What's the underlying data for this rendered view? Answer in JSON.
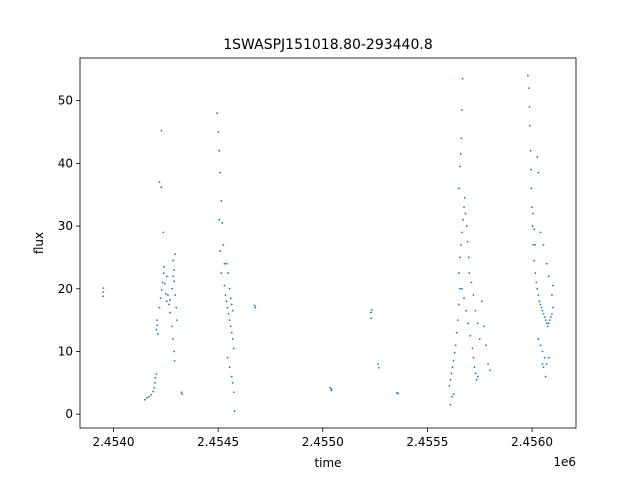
{
  "chart_data": {
    "type": "scatter",
    "title": "1SWASPJ151018.80-293440.8",
    "xlabel": "time",
    "ylabel": "flux",
    "x_offset_label": "1e6",
    "xlim": [
      2453840,
      2456210
    ],
    "ylim": [
      -2.2,
      56.8
    ],
    "x_ticks": [
      2454000,
      2454500,
      2455000,
      2455500,
      2456000
    ],
    "x_tick_labels": [
      "2.4540",
      "2.4545",
      "2.4550",
      "2.4555",
      "2.4560"
    ],
    "y_ticks": [
      0,
      10,
      20,
      30,
      40,
      50
    ],
    "y_tick_labels": [
      "0",
      "10",
      "20",
      "30",
      "40",
      "50"
    ],
    "grid": false,
    "legend": "none",
    "point_color": "#1f77b4",
    "series": [
      {
        "points": [
          [
            2453950,
            19.5
          ],
          [
            2453950,
            18.8
          ],
          [
            2453952,
            20.1
          ],
          [
            2454150,
            2.3
          ],
          [
            2454160,
            2.6
          ],
          [
            2454170,
            2.8
          ],
          [
            2454180,
            3.1
          ],
          [
            2454190,
            3.6
          ],
          [
            2454195,
            4.2
          ],
          [
            2454198,
            5.0
          ],
          [
            2454200,
            5.8
          ],
          [
            2454205,
            6.4
          ],
          [
            2454205,
            13.5
          ],
          [
            2454208,
            15.0
          ],
          [
            2454210,
            14.2
          ],
          [
            2454212,
            12.8
          ],
          [
            2454220,
            17.0
          ],
          [
            2454225,
            18.5
          ],
          [
            2454230,
            19.8
          ],
          [
            2454235,
            21.0
          ],
          [
            2454240,
            22.5
          ],
          [
            2454242,
            23.5
          ],
          [
            2454245,
            20.8
          ],
          [
            2454250,
            19.2
          ],
          [
            2454255,
            18.0
          ],
          [
            2454220,
            37.0
          ],
          [
            2454228,
            36.2
          ],
          [
            2454230,
            45.2
          ],
          [
            2454238,
            29.0
          ],
          [
            2454255,
            22.0
          ],
          [
            2454260,
            19.0
          ],
          [
            2454270,
            16.2
          ],
          [
            2454280,
            14.0
          ],
          [
            2454285,
            12.0
          ],
          [
            2454290,
            10.0
          ],
          [
            2454292,
            8.5
          ],
          [
            2454265,
            17.5
          ],
          [
            2454270,
            18.2
          ],
          [
            2454280,
            20.0
          ],
          [
            2454285,
            22.0
          ],
          [
            2454290,
            21.2
          ],
          [
            2454295,
            19.0
          ],
          [
            2454300,
            17.0
          ],
          [
            2454302,
            15.0
          ],
          [
            2454285,
            24.5
          ],
          [
            2454290,
            23.0
          ],
          [
            2454295,
            25.5
          ],
          [
            2454325,
            3.5
          ],
          [
            2454328,
            3.2
          ],
          [
            2454495,
            48.0
          ],
          [
            2454500,
            45.0
          ],
          [
            2454505,
            42.0
          ],
          [
            2454510,
            38.5
          ],
          [
            2454515,
            34.0
          ],
          [
            2454520,
            30.5
          ],
          [
            2454525,
            27.0
          ],
          [
            2454530,
            24.0
          ],
          [
            2454505,
            31.0
          ],
          [
            2454510,
            26.0
          ],
          [
            2454515,
            22.5
          ],
          [
            2454530,
            20.5
          ],
          [
            2454535,
            19.0
          ],
          [
            2454540,
            18.0
          ],
          [
            2454545,
            17.0
          ],
          [
            2454550,
            16.0
          ],
          [
            2454555,
            15.0
          ],
          [
            2454560,
            14.0
          ],
          [
            2454565,
            13.0
          ],
          [
            2454570,
            12.0
          ],
          [
            2454575,
            10.5
          ],
          [
            2454540,
            24.0
          ],
          [
            2454548,
            22.5
          ],
          [
            2454555,
            20.0
          ],
          [
            2454560,
            18.5
          ],
          [
            2454565,
            17.5
          ],
          [
            2454570,
            16.5
          ],
          [
            2454545,
            9.0
          ],
          [
            2454555,
            7.5
          ],
          [
            2454565,
            6.0
          ],
          [
            2454570,
            5.0
          ],
          [
            2454575,
            3.5
          ],
          [
            2454578,
            0.5
          ],
          [
            2454675,
            17.3
          ],
          [
            2454678,
            17.0
          ],
          [
            2455035,
            4.2
          ],
          [
            2455040,
            3.8
          ],
          [
            2455042,
            4.0
          ],
          [
            2455230,
            16.2
          ],
          [
            2455232,
            15.3
          ],
          [
            2455234,
            16.6
          ],
          [
            2455265,
            8.0
          ],
          [
            2455268,
            7.4
          ],
          [
            2455355,
            3.4
          ],
          [
            2455360,
            3.3
          ],
          [
            2455605,
            4.5
          ],
          [
            2455610,
            5.5
          ],
          [
            2455615,
            6.5
          ],
          [
            2455620,
            7.5
          ],
          [
            2455625,
            8.5
          ],
          [
            2455630,
            9.8
          ],
          [
            2455635,
            11.0
          ],
          [
            2455640,
            13.0
          ],
          [
            2455645,
            15.0
          ],
          [
            2455650,
            17.5
          ],
          [
            2455655,
            20.0
          ],
          [
            2455610,
            1.5
          ],
          [
            2455618,
            2.8
          ],
          [
            2455625,
            3.2
          ],
          [
            2455650,
            22.5
          ],
          [
            2455655,
            25.0
          ],
          [
            2455660,
            27.0
          ],
          [
            2455665,
            29.0
          ],
          [
            2455670,
            31.0
          ],
          [
            2455675,
            33.0
          ],
          [
            2455678,
            34.5
          ],
          [
            2455682,
            32.0
          ],
          [
            2455688,
            30.0
          ],
          [
            2455692,
            27.5
          ],
          [
            2455698,
            25.0
          ],
          [
            2455650,
            36.0
          ],
          [
            2455655,
            39.5
          ],
          [
            2455658,
            41.5
          ],
          [
            2455662,
            44.0
          ],
          [
            2455665,
            48.5
          ],
          [
            2455668,
            53.5
          ],
          [
            2455665,
            20.0
          ],
          [
            2455675,
            18.5
          ],
          [
            2455685,
            16.5
          ],
          [
            2455695,
            14.5
          ],
          [
            2455705,
            12.5
          ],
          [
            2455715,
            10.5
          ],
          [
            2455720,
            9.0
          ],
          [
            2455725,
            7.5
          ],
          [
            2455730,
            6.5
          ],
          [
            2455735,
            5.5
          ],
          [
            2455740,
            6.0
          ],
          [
            2455700,
            22.5
          ],
          [
            2455710,
            21.0
          ],
          [
            2455720,
            19.0
          ],
          [
            2455730,
            16.5
          ],
          [
            2455740,
            14.5
          ],
          [
            2455750,
            12.0
          ],
          [
            2455760,
            18.0
          ],
          [
            2455770,
            14.0
          ],
          [
            2455780,
            11.0
          ],
          [
            2455790,
            8.0
          ],
          [
            2455800,
            7.0
          ],
          [
            2455980,
            54.0
          ],
          [
            2455985,
            52.0
          ],
          [
            2455988,
            49.0
          ],
          [
            2455990,
            46.0
          ],
          [
            2455993,
            42.0
          ],
          [
            2455995,
            39.0
          ],
          [
            2455997,
            36.0
          ],
          [
            2455999,
            33.0
          ],
          [
            2456002,
            30.0
          ],
          [
            2456005,
            27.0
          ],
          [
            2456010,
            24.5
          ],
          [
            2456015,
            22.5
          ],
          [
            2456005,
            32.0
          ],
          [
            2456010,
            29.5
          ],
          [
            2456015,
            27.0
          ],
          [
            2456020,
            21.0
          ],
          [
            2456025,
            20.0
          ],
          [
            2456030,
            19.0
          ],
          [
            2456035,
            18.0
          ],
          [
            2456040,
            17.5
          ],
          [
            2456045,
            17.0
          ],
          [
            2456050,
            16.5
          ],
          [
            2456055,
            16.0
          ],
          [
            2456060,
            15.5
          ],
          [
            2456065,
            15.0
          ],
          [
            2456070,
            14.5
          ],
          [
            2456075,
            14.0
          ],
          [
            2456080,
            14.5
          ],
          [
            2456085,
            15.0
          ],
          [
            2456090,
            15.5
          ],
          [
            2456095,
            16.0
          ],
          [
            2456100,
            17.0
          ],
          [
            2456030,
            12.0
          ],
          [
            2456040,
            11.0
          ],
          [
            2456050,
            10.0
          ],
          [
            2456060,
            9.0
          ],
          [
            2456070,
            8.0
          ],
          [
            2456080,
            9.0
          ],
          [
            2456050,
            8.0
          ],
          [
            2456055,
            7.5
          ],
          [
            2456065,
            6.0
          ],
          [
            2456025,
            41.0
          ],
          [
            2456030,
            38.5
          ],
          [
            2456040,
            29.0
          ],
          [
            2456055,
            27.0
          ],
          [
            2456070,
            24.0
          ],
          [
            2456080,
            22.0
          ],
          [
            2456095,
            19.0
          ],
          [
            2456100,
            20.5
          ]
        ]
      }
    ]
  }
}
